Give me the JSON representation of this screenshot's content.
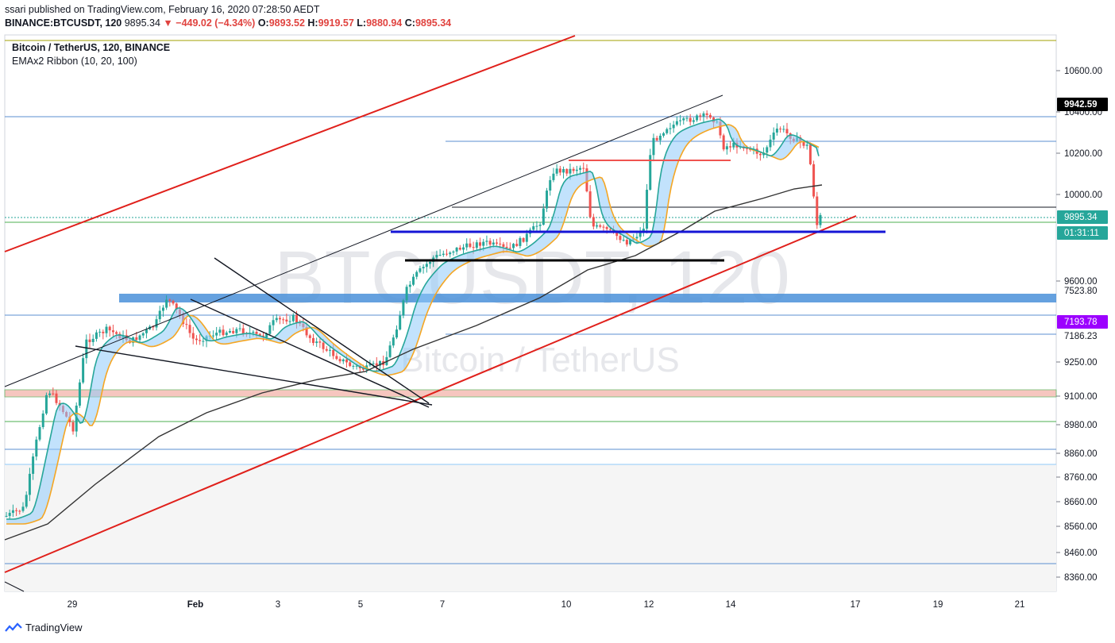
{
  "header": {
    "published": "ssari published on TradingView.com, February 16, 2020 07:28:50 AEDT",
    "symbol": "BINANCE:BTCUSDT, 120",
    "last": "9895.34",
    "change": "−449.02 (−4.34%)",
    "o_label": "O:",
    "o_value": "9893.52",
    "h_label": "H:",
    "h_value": "9919.57",
    "l_label": "L:",
    "l_value": "9880.94",
    "c_label": "C:",
    "c_value": "9895.34"
  },
  "legend": {
    "title": "Bitcoin / TetherUS, 120, BINANCE",
    "indicator": "EMAx2 Ribbon (10, 20, 100)"
  },
  "watermark": {
    "main": "BTCUSDT, 120",
    "sub": "Bitcoin / TetherUS"
  },
  "footer": {
    "brand": "TradingView"
  },
  "chart_data": {
    "type": "candlestick",
    "price_axis": {
      "ticks": [
        "10600.00",
        "10400.00",
        "10200.00",
        "10000.00",
        "9600.00",
        "9250.00",
        "9100.00",
        "8980.00",
        "8860.00",
        "8760.00",
        "8660.00",
        "8560.00",
        "8460.00",
        "8360.00"
      ],
      "badges": [
        {
          "label": "9942.59",
          "style": "black"
        },
        {
          "label": "9895.34",
          "style": "teal"
        },
        {
          "label": "01:31:11",
          "style": "teal"
        },
        {
          "label": "7523.80",
          "style": "plain"
        },
        {
          "label": "7193.78",
          "style": "purple"
        },
        {
          "label": "7186.23",
          "style": "plain"
        }
      ]
    },
    "time_axis": {
      "ticks": [
        "29",
        "Feb",
        "3",
        "5",
        "7",
        "10",
        "12",
        "14",
        "17",
        "19",
        "21"
      ]
    },
    "last_price": 9895.34,
    "candle_count": 245,
    "colors": {
      "up": "#26a69a",
      "down": "#ef5350",
      "ema_fast": "#26a69a",
      "ema_mid": "#f5a623",
      "ema_slow": "#333333",
      "ribbon": "#90caf9",
      "channel": "#e0201b",
      "blue_level": "#1515d6",
      "zone_blue": "#4a90d9",
      "zone_red": "#f4b9b0"
    }
  }
}
